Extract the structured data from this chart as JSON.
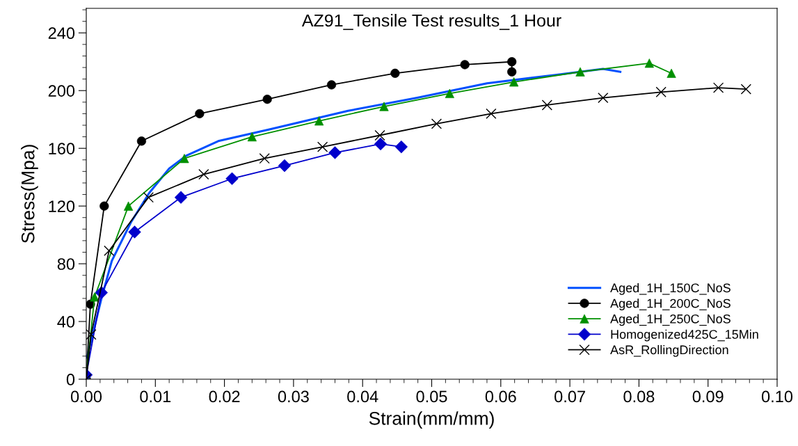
{
  "chart_data": {
    "type": "line",
    "title": "AZ91_Tensile Test results_1 Hour",
    "xlabel": "Strain(mm/mm)",
    "ylabel": "Stress(Mpa)",
    "xlim": [
      0,
      0.1
    ],
    "ylim": [
      0,
      257
    ],
    "xticks": [
      {
        "value": 0,
        "label": "0.00"
      },
      0.01,
      0.02,
      0.03,
      0.04,
      0.05,
      0.06,
      0.07,
      0.08,
      0.09,
      {
        "value": 0.1,
        "label": "0.10"
      }
    ],
    "yticks": [
      0,
      40,
      80,
      120,
      160,
      200,
      240
    ],
    "grid": false,
    "legend": "bottom right",
    "series": [
      {
        "name": "Aged_1H_150C_NoS",
        "color": "#0050ff",
        "marker": "none",
        "x": [
          0.0001,
          0.0022,
          0.0037,
          0.0065,
          0.0091,
          0.012,
          0.0145,
          0.0191,
          0.0264,
          0.0379,
          0.0479,
          0.058,
          0.0681,
          0.0748,
          0.0773
        ],
        "values": [
          15,
          56,
          82,
          109,
          129,
          146,
          155,
          165,
          173,
          186,
          195,
          205,
          211,
          215,
          213
        ]
      },
      {
        "name": "Aged_1H_200C_NoS",
        "color": "#000000",
        "marker": "circle",
        "x": [
          0,
          0.0006,
          0.0026,
          0.008,
          0.0164,
          0.0262,
          0.0355,
          0.0447,
          0.0548,
          0.0616,
          0.0616
        ],
        "values": [
          0,
          52,
          120,
          165,
          184,
          194,
          204,
          212,
          218,
          220,
          213
        ]
      },
      {
        "name": "Aged_1H_250C_NoS",
        "color": "#009000",
        "marker": "triangle",
        "x": [
          0,
          0.0012,
          0.0061,
          0.0142,
          0.024,
          0.0337,
          0.0431,
          0.0526,
          0.0619,
          0.0715,
          0.0815,
          0.0847
        ],
        "values": [
          2,
          57,
          120,
          153,
          168,
          179,
          189,
          198,
          206,
          213,
          219,
          212
        ]
      },
      {
        "name": "Homogenized425C_15Min",
        "color": "#0000cc",
        "marker": "diamond",
        "x": [
          0,
          0.0022,
          0.007,
          0.0137,
          0.0211,
          0.0287,
          0.036,
          0.0426,
          0.0456
        ],
        "values": [
          3,
          60,
          102,
          126,
          139,
          148,
          157,
          163,
          161
        ]
      },
      {
        "name": "AsR_RollingDirection",
        "color": "#000000",
        "marker": "cross",
        "x": [
          0,
          0.0007,
          0.0033,
          0.009,
          0.017,
          0.0258,
          0.0342,
          0.0425,
          0.0507,
          0.0586,
          0.0667,
          0.0748,
          0.0832,
          0.0915,
          0.0955
        ],
        "values": [
          0,
          31,
          89,
          126,
          142,
          153,
          161,
          169,
          177,
          184,
          190,
          195,
          199,
          202,
          201
        ]
      }
    ]
  }
}
